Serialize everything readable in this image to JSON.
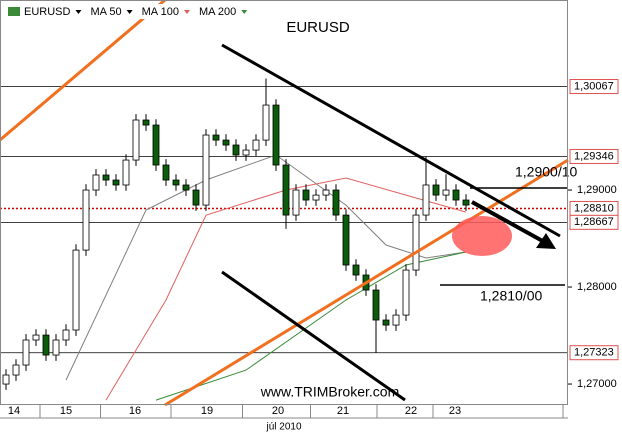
{
  "chart_data": {
    "type": "candlestick",
    "title": "EURUSD",
    "symbol": "EURUSD",
    "x": [
      0,
      1,
      2,
      3,
      4,
      5,
      6,
      7,
      8,
      9,
      10,
      11,
      12,
      13,
      14,
      15,
      16,
      17,
      18,
      19,
      20,
      21,
      22,
      23,
      24,
      25,
      26,
      27,
      28,
      29,
      30,
      31,
      32,
      33,
      34,
      35,
      36,
      37,
      38,
      39,
      40,
      41,
      42,
      43,
      44,
      45,
      46
    ],
    "open": [
      1.27,
      1.27093,
      1.27196,
      1.27454,
      1.27505,
      1.27299,
      1.27454,
      1.27557,
      1.28381,
      1.29,
      1.29155,
      1.29103,
      1.29052,
      1.29309,
      1.29722,
      1.2967,
      1.29258,
      1.29103,
      1.29052,
      1.29,
      1.28845,
      1.29567,
      1.29515,
      1.29464,
      1.29361,
      1.29412,
      1.29515,
      1.29876,
      1.29258,
      1.28742,
      1.29,
      1.28897,
      1.28948,
      1.29,
      1.28742,
      1.28227,
      1.28124,
      1.27969,
      1.2766,
      1.27608,
      1.27711,
      1.28175,
      1.28742,
      1.29052,
      1.28948,
      1.29,
      1.28897
    ],
    "high": [
      1.27153,
      1.27256,
      1.27514,
      1.27565,
      1.27565,
      1.27514,
      1.27617,
      1.28441,
      1.2906,
      1.29215,
      1.29215,
      1.29163,
      1.29369,
      1.29782,
      1.29782,
      1.2973,
      1.29318,
      1.29163,
      1.29112,
      1.2906,
      1.29627,
      1.29627,
      1.29575,
      1.29524,
      1.29472,
      1.29575,
      1.3015,
      1.29936,
      1.29318,
      1.2906,
      1.2906,
      1.29008,
      1.2906,
      1.2906,
      1.28802,
      1.28287,
      1.28184,
      1.28029,
      1.2772,
      1.27771,
      1.28235,
      1.28802,
      1.29346,
      1.29112,
      1.29163,
      1.2906,
      1.28957
    ],
    "low": [
      1.2694,
      1.27033,
      1.27136,
      1.27394,
      1.27239,
      1.27239,
      1.27394,
      1.27497,
      1.28321,
      1.2894,
      1.29043,
      1.28992,
      1.28992,
      1.29249,
      1.2961,
      1.29198,
      1.29043,
      1.28992,
      1.2894,
      1.28785,
      1.28785,
      1.29455,
      1.29404,
      1.29301,
      1.29301,
      1.29352,
      1.29455,
      1.29198,
      1.286,
      1.28682,
      1.28837,
      1.28837,
      1.28888,
      1.28682,
      1.28167,
      1.28064,
      1.27909,
      1.27323,
      1.27548,
      1.27548,
      1.27651,
      1.28115,
      1.28682,
      1.28888,
      1.28888,
      1.28837,
      1.28785
    ],
    "close": [
      1.27093,
      1.27196,
      1.27454,
      1.27505,
      1.27299,
      1.27454,
      1.27557,
      1.28381,
      1.29,
      1.29155,
      1.29103,
      1.29052,
      1.29309,
      1.29722,
      1.2967,
      1.29258,
      1.29103,
      1.29052,
      1.29,
      1.28845,
      1.29567,
      1.29515,
      1.29464,
      1.29361,
      1.29412,
      1.29515,
      1.29876,
      1.29258,
      1.28742,
      1.29,
      1.28897,
      1.28948,
      1.29,
      1.28742,
      1.28227,
      1.28124,
      1.27969,
      1.2766,
      1.27608,
      1.27711,
      1.28175,
      1.28742,
      1.29052,
      1.28948,
      1.29,
      1.28897,
      1.28845
    ],
    "up_color": "#ffffff",
    "down_color": "#0b5d0b",
    "xlim": [
      -0.6,
      56.2
    ],
    "ylim": [
      1.26784,
      1.30959
    ],
    "yticks": [
      {
        "value": 1.27,
        "label": "1,27000"
      },
      {
        "value": 1.28,
        "label": "1,28000"
      },
      {
        "value": 1.29,
        "label": "1,29000"
      }
    ],
    "xticks": [
      {
        "value": 0.8,
        "label": "14"
      },
      {
        "value": 6,
        "label": "15"
      },
      {
        "value": 12.9,
        "label": "16"
      },
      {
        "value": 20.1,
        "label": "19"
      },
      {
        "value": 27.2,
        "label": "20"
      },
      {
        "value": 33.7,
        "label": "21"
      },
      {
        "value": 40.5,
        "label": "22"
      },
      {
        "value": 44.9,
        "label": "23"
      }
    ],
    "x_label": "júl 2010",
    "levels": [
      {
        "value": 1.30067,
        "label": "1,30067",
        "color": "#000000",
        "dashed": false
      },
      {
        "value": 1.29346,
        "label": "1,29346",
        "color": "#000000",
        "dashed": false
      },
      {
        "value": 1.2881,
        "label": "1,28810",
        "color": "#d00000",
        "dashed": true
      },
      {
        "value": 1.28667,
        "label": "1,28667",
        "color": "#000000",
        "dashed": false
      },
      {
        "value": 1.27323,
        "label": "1,27323",
        "color": "#000000",
        "dashed": false
      }
    ],
    "moving_averages": [
      {
        "name": "MA 50",
        "color": "#808080",
        "x": [
          6,
          14,
          20,
          27,
          34,
          38,
          42,
          46
        ],
        "values": [
          1.27041,
          1.28794,
          1.29103,
          1.29361,
          1.28845,
          1.28433,
          1.28299,
          1.28361
        ]
      },
      {
        "name": "MA 100",
        "color": "#e06060",
        "x": [
          10,
          16,
          20,
          28,
          34,
          40,
          46
        ],
        "values": [
          1.26835,
          1.27866,
          1.28742,
          1.29,
          1.29124,
          1.28948,
          1.28773
        ]
      },
      {
        "name": "MA 200",
        "color": "#3a8a3a",
        "x": [
          15,
          24,
          34,
          40,
          46
        ],
        "values": [
          1.26835,
          1.27144,
          1.27866,
          1.28227,
          1.28361
        ]
      }
    ],
    "annotations": [
      "1,2900/10",
      "1,2810/00"
    ],
    "watermark": "www.TRIMBroker.com"
  }
}
